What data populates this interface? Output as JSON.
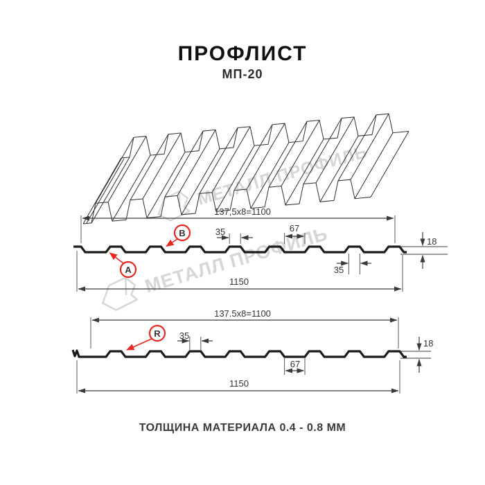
{
  "page": {
    "title": "ПРОФЛИСТ",
    "subtitle": "МП-20",
    "footer": "ТОЛЩИНА МАТЕРИАЛА 0.4 - 0.8 ММ"
  },
  "watermark": {
    "brand": "МЕТАЛЛ ПРОФИЛЬ"
  },
  "colors": {
    "accent_red": "#e8271f",
    "drawing_black": "#1b1b1b",
    "watermark_gray": "#d6d6d6"
  },
  "profile_top": {
    "side_labels": {
      "a": "A",
      "b": "B"
    },
    "dims": {
      "pitch": "137,5x8=1100",
      "rib_top_width": "35",
      "valley_width": "67",
      "height": "18",
      "rib_bottom_width": "35",
      "overall_width": "1150"
    }
  },
  "profile_bottom": {
    "side_labels": {
      "r": "R"
    },
    "dims": {
      "pitch": "137.5x8=1100",
      "rib_top_width": "35",
      "valley_width": "67",
      "height": "18",
      "overall_width": "1150"
    }
  }
}
